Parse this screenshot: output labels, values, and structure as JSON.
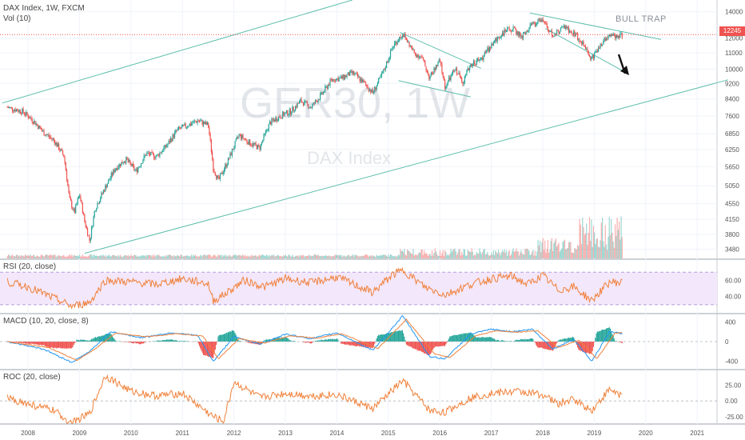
{
  "header": {
    "symbol_line": "DAX Index, 1W, FXCM",
    "volume_legend": "Vol (10)"
  },
  "watermark": {
    "ticker": "GER30, 1W",
    "name": "DAX Index"
  },
  "annotation": "BULL TRAP",
  "last_price": "12245",
  "colors": {
    "up": "#26a69a",
    "down": "#ef5350",
    "channel": "#5fbfae",
    "rsi": "#f0813a",
    "rsi_band": "#f3e7fb",
    "macd": "#2196f3",
    "signal": "#f0813a",
    "roc": "#f0813a",
    "price_line": "#ef5350"
  },
  "chart_data": [
    {
      "type": "line",
      "title": "DAX Index, 1W, FXCM",
      "subtitle": "Vol (10)",
      "scale": "log",
      "y_ticks": [
        14000,
        12000,
        11000,
        10000,
        9200,
        8400,
        7600,
        6850,
        6250,
        5650,
        5050,
        4550,
        4150,
        3800,
        3480
      ],
      "x_ticks": [
        "2008",
        "2009",
        "2010",
        "2011",
        "2012",
        "2013",
        "2014",
        "2015",
        "2016",
        "2017",
        "2018",
        "2019",
        "2020",
        "2021"
      ],
      "ylim": [
        3300,
        15000
      ],
      "series": [
        {
          "values": [
            [
              2007.6,
              8000
            ],
            [
              2007.9,
              7800
            ],
            [
              2008.1,
              7400
            ],
            [
              2008.3,
              6900
            ],
            [
              2008.5,
              6600
            ],
            [
              2008.7,
              6000
            ],
            [
              2008.8,
              4700
            ],
            [
              2008.9,
              4300
            ],
            [
              2009.0,
              4800
            ],
            [
              2009.1,
              4100
            ],
            [
              2009.2,
              3650
            ],
            [
              2009.3,
              4400
            ],
            [
              2009.5,
              5000
            ],
            [
              2009.7,
              5600
            ],
            [
              2009.9,
              5900
            ],
            [
              2010.1,
              5500
            ],
            [
              2010.3,
              6100
            ],
            [
              2010.5,
              6000
            ],
            [
              2010.7,
              6400
            ],
            [
              2010.9,
              7000
            ],
            [
              2011.1,
              7200
            ],
            [
              2011.3,
              7400
            ],
            [
              2011.5,
              7200
            ],
            [
              2011.6,
              5600
            ],
            [
              2011.7,
              5200
            ],
            [
              2011.9,
              5900
            ],
            [
              2012.1,
              6800
            ],
            [
              2012.3,
              6500
            ],
            [
              2012.5,
              6300
            ],
            [
              2012.7,
              7300
            ],
            [
              2012.9,
              7600
            ],
            [
              2013.1,
              7800
            ],
            [
              2013.3,
              8300
            ],
            [
              2013.5,
              8000
            ],
            [
              2013.7,
              8600
            ],
            [
              2013.9,
              9400
            ],
            [
              2014.1,
              9500
            ],
            [
              2014.3,
              9800
            ],
            [
              2014.5,
              9300
            ],
            [
              2014.7,
              8700
            ],
            [
              2014.9,
              9800
            ],
            [
              2015.1,
              11500
            ],
            [
              2015.28,
              12300
            ],
            [
              2015.5,
              11000
            ],
            [
              2015.65,
              10700
            ],
            [
              2015.8,
              9500
            ],
            [
              2016.0,
              10500
            ],
            [
              2016.1,
              9000
            ],
            [
              2016.3,
              10000
            ],
            [
              2016.45,
              9300
            ],
            [
              2016.6,
              10300
            ],
            [
              2016.8,
              10600
            ],
            [
              2017.0,
              11500
            ],
            [
              2017.2,
              12300
            ],
            [
              2017.4,
              12700
            ],
            [
              2017.6,
              12100
            ],
            [
              2017.8,
              13000
            ],
            [
              2018.0,
              13400
            ],
            [
              2018.2,
              12100
            ],
            [
              2018.4,
              12800
            ],
            [
              2018.6,
              12400
            ],
            [
              2018.8,
              11500
            ],
            [
              2018.95,
              10600
            ],
            [
              2019.1,
              11400
            ],
            [
              2019.3,
              12300
            ],
            [
              2019.45,
              12100
            ],
            [
              2019.55,
              12245
            ]
          ]
        }
      ],
      "annotations": [
        "BULL TRAP"
      ],
      "last_value_label": "12245",
      "grid": true
    },
    {
      "type": "line",
      "title": "RSI (20, close)",
      "ylim": [
        20,
        85
      ],
      "y_ticks": [
        60.0,
        40.0
      ],
      "band": [
        30,
        70
      ],
      "series": [
        {
          "values": [
            [
              2007.6,
              58
            ],
            [
              2008.0,
              52
            ],
            [
              2008.5,
              38
            ],
            [
              2008.85,
              28
            ],
            [
              2009.2,
              33
            ],
            [
              2009.5,
              60
            ],
            [
              2010.0,
              58
            ],
            [
              2010.5,
              55
            ],
            [
              2011.0,
              62
            ],
            [
              2011.5,
              56
            ],
            [
              2011.6,
              35
            ],
            [
              2011.8,
              42
            ],
            [
              2012.2,
              60
            ],
            [
              2012.6,
              52
            ],
            [
              2013.0,
              62
            ],
            [
              2013.5,
              57
            ],
            [
              2014.0,
              64
            ],
            [
              2014.7,
              45
            ],
            [
              2015.1,
              68
            ],
            [
              2015.3,
              72
            ],
            [
              2015.7,
              52
            ],
            [
              2016.1,
              42
            ],
            [
              2016.6,
              55
            ],
            [
              2017.0,
              62
            ],
            [
              2017.4,
              65
            ],
            [
              2017.7,
              55
            ],
            [
              2018.0,
              66
            ],
            [
              2018.3,
              48
            ],
            [
              2018.6,
              52
            ],
            [
              2018.95,
              35
            ],
            [
              2019.3,
              58
            ],
            [
              2019.55,
              57
            ]
          ]
        }
      ]
    },
    {
      "type": "line",
      "title": "MACD (10, 20, close, 8)",
      "ylim": [
        -550,
        550
      ],
      "y_ticks": [
        400,
        0,
        -400
      ],
      "series": [
        {
          "name": "MACD",
          "values": [
            [
              2007.6,
              0
            ],
            [
              2008.3,
              -150
            ],
            [
              2008.85,
              -420
            ],
            [
              2009.2,
              -200
            ],
            [
              2009.6,
              200
            ],
            [
              2010.2,
              80
            ],
            [
              2010.8,
              180
            ],
            [
              2011.3,
              120
            ],
            [
              2011.6,
              -400
            ],
            [
              2012.0,
              100
            ],
            [
              2012.5,
              -50
            ],
            [
              2013.0,
              150
            ],
            [
              2013.5,
              60
            ],
            [
              2014.0,
              180
            ],
            [
              2014.7,
              -180
            ],
            [
              2015.28,
              520
            ],
            [
              2015.8,
              -300
            ],
            [
              2016.1,
              -350
            ],
            [
              2016.6,
              150
            ],
            [
              2017.0,
              250
            ],
            [
              2017.4,
              200
            ],
            [
              2017.8,
              250
            ],
            [
              2018.2,
              -150
            ],
            [
              2018.6,
              50
            ],
            [
              2018.95,
              -400
            ],
            [
              2019.3,
              200
            ],
            [
              2019.55,
              160
            ]
          ]
        },
        {
          "name": "Signal",
          "values": [
            [
              2007.6,
              0
            ],
            [
              2008.4,
              -120
            ],
            [
              2008.95,
              -380
            ],
            [
              2009.3,
              -150
            ],
            [
              2009.7,
              170
            ],
            [
              2010.3,
              100
            ],
            [
              2010.9,
              160
            ],
            [
              2011.4,
              110
            ],
            [
              2011.7,
              -350
            ],
            [
              2012.1,
              60
            ],
            [
              2012.6,
              -30
            ],
            [
              2013.1,
              120
            ],
            [
              2013.6,
              70
            ],
            [
              2014.1,
              160
            ],
            [
              2014.8,
              -140
            ],
            [
              2015.35,
              450
            ],
            [
              2015.9,
              -250
            ],
            [
              2016.2,
              -320
            ],
            [
              2016.7,
              120
            ],
            [
              2017.1,
              220
            ],
            [
              2017.5,
              190
            ],
            [
              2017.9,
              220
            ],
            [
              2018.3,
              -120
            ],
            [
              2018.7,
              30
            ],
            [
              2019.05,
              -350
            ],
            [
              2019.4,
              170
            ],
            [
              2019.55,
              180
            ]
          ]
        }
      ]
    },
    {
      "type": "line",
      "title": "ROC (20, close)",
      "ylim": [
        -35,
        48
      ],
      "y_ticks": [
        25.0,
        0.0,
        -25.0
      ],
      "series": [
        {
          "values": [
            [
              2007.6,
              5
            ],
            [
              2008.0,
              -5
            ],
            [
              2008.5,
              -15
            ],
            [
              2008.85,
              -35
            ],
            [
              2009.2,
              -20
            ],
            [
              2009.5,
              40
            ],
            [
              2010.0,
              15
            ],
            [
              2010.5,
              8
            ],
            [
              2011.0,
              12
            ],
            [
              2011.6,
              -25
            ],
            [
              2011.8,
              -32
            ],
            [
              2012.0,
              30
            ],
            [
              2012.5,
              5
            ],
            [
              2013.0,
              12
            ],
            [
              2013.5,
              8
            ],
            [
              2014.0,
              10
            ],
            [
              2014.7,
              -12
            ],
            [
              2015.28,
              32
            ],
            [
              2015.8,
              -15
            ],
            [
              2016.1,
              -18
            ],
            [
              2016.6,
              5
            ],
            [
              2017.0,
              12
            ],
            [
              2017.5,
              15
            ],
            [
              2018.0,
              10
            ],
            [
              2018.3,
              -5
            ],
            [
              2018.6,
              3
            ],
            [
              2018.95,
              -15
            ],
            [
              2019.3,
              18
            ],
            [
              2019.55,
              8
            ]
          ]
        }
      ]
    }
  ]
}
